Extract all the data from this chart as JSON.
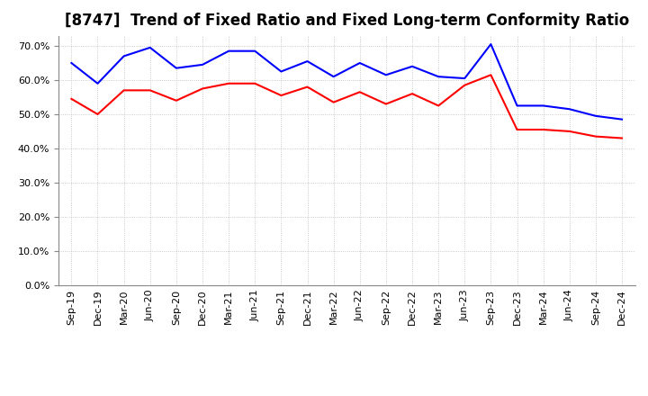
{
  "title": "[8747]  Trend of Fixed Ratio and Fixed Long-term Conformity Ratio",
  "x_labels": [
    "Sep-19",
    "Dec-19",
    "Mar-20",
    "Jun-20",
    "Sep-20",
    "Dec-20",
    "Mar-21",
    "Jun-21",
    "Sep-21",
    "Dec-21",
    "Mar-22",
    "Jun-22",
    "Sep-22",
    "Dec-22",
    "Mar-23",
    "Jun-23",
    "Sep-23",
    "Dec-23",
    "Mar-24",
    "Jun-24",
    "Sep-24",
    "Dec-24"
  ],
  "fixed_ratio": [
    65.0,
    59.0,
    67.0,
    69.5,
    63.5,
    64.5,
    68.5,
    68.5,
    62.5,
    65.5,
    61.0,
    65.0,
    61.5,
    64.0,
    61.0,
    60.5,
    70.5,
    52.5,
    52.5,
    51.5,
    49.5,
    48.5
  ],
  "fixed_lt_ratio": [
    54.5,
    50.0,
    57.0,
    57.0,
    54.0,
    57.5,
    59.0,
    59.0,
    55.5,
    58.0,
    53.5,
    56.5,
    53.0,
    56.0,
    52.5,
    58.5,
    61.5,
    45.5,
    45.5,
    45.0,
    43.5,
    43.0
  ],
  "fixed_ratio_color": "#0000FF",
  "fixed_lt_ratio_color": "#FF0000",
  "background_color": "#FFFFFF",
  "grid_color": "#BBBBBB",
  "title_fontsize": 12,
  "axis_fontsize": 8,
  "legend_fontsize": 9
}
